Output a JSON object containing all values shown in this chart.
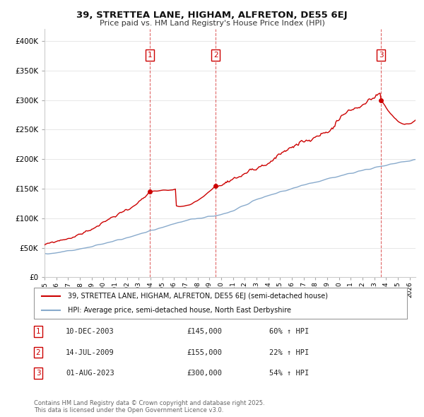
{
  "title": "39, STRETTEA LANE, HIGHAM, ALFRETON, DE55 6EJ",
  "subtitle": "Price paid vs. HM Land Registry's House Price Index (HPI)",
  "legend_line1": "39, STRETTEA LANE, HIGHAM, ALFRETON, DE55 6EJ (semi-detached house)",
  "legend_line2": "HPI: Average price, semi-detached house, North East Derbyshire",
  "sale_color": "#cc0000",
  "hpi_color": "#88aacc",
  "transactions": [
    {
      "num": 1,
      "date": "10-DEC-2003",
      "price": 145000,
      "pct": "60% ↑ HPI",
      "year": 2003.92
    },
    {
      "num": 2,
      "date": "14-JUL-2009",
      "price": 155000,
      "pct": "22% ↑ HPI",
      "year": 2009.54
    },
    {
      "num": 3,
      "date": "01-AUG-2023",
      "price": 300000,
      "pct": "54% ↑ HPI",
      "year": 2023.58
    }
  ],
  "footer": "Contains HM Land Registry data © Crown copyright and database right 2025.\nThis data is licensed under the Open Government Licence v3.0.",
  "ylim": [
    0,
    420000
  ],
  "xlim_start": 1995,
  "xlim_end": 2026.5
}
